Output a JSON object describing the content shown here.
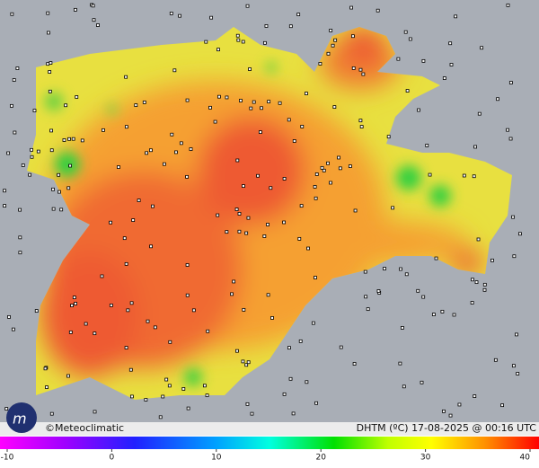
{
  "credit": "©Meteoclimatic",
  "caption": "DHTM (ºC) 17-08-2025 @ 00:16 UTC",
  "colorbar": {
    "lim": [
      -10,
      40
    ],
    "ticks": [
      -10,
      0,
      10,
      20,
      30,
      40
    ]
  }
}
